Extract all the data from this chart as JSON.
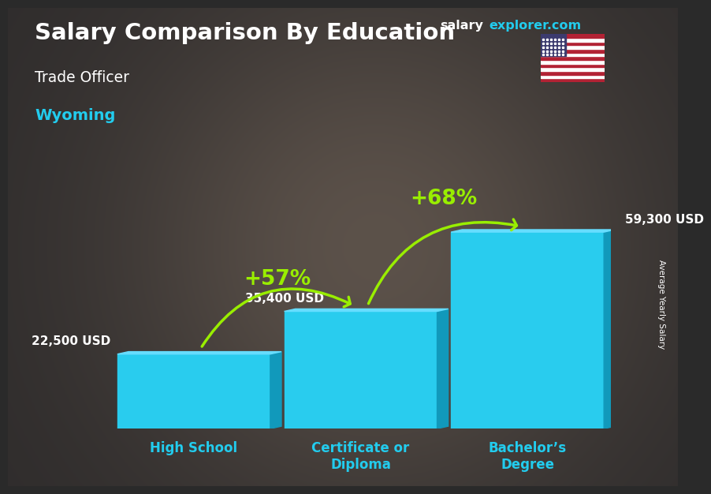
{
  "title_main": "Salary Comparison By Education",
  "title_sub": "Trade Officer",
  "title_location": "Wyoming",
  "ylabel": "Average Yearly Salary",
  "categories": [
    "High School",
    "Certificate or\nDiploma",
    "Bachelor’s\nDegree"
  ],
  "values": [
    22500,
    35400,
    59300
  ],
  "value_labels": [
    "22,500 USD",
    "35,400 USD",
    "59,300 USD"
  ],
  "bar_color_front": "#29ccee",
  "bar_color_side": "#1199bb",
  "bar_color_top": "#66ddff",
  "pct_labels": [
    "+57%",
    "+68%"
  ],
  "pct_color": "#99ee00",
  "website_salary": "salary",
  "website_rest": "explorer.com",
  "background_color": "#2a2a2a",
  "text_color_white": "#ffffff",
  "text_color_cyan": "#22ccee",
  "value_label_color": "#ffffff",
  "right_label": "Average Yearly Salary"
}
